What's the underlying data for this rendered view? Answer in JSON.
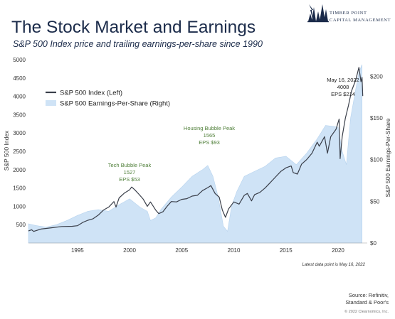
{
  "header": {
    "title": "The Stock Market and Earnings",
    "subtitle": "S&P 500 Index price and trailing earnings-per-share since 1990"
  },
  "logo": {
    "line1": "TIMBER POINT",
    "line2": "CAPITAL MANAGEMENT",
    "icon": "tree-icon",
    "color": "#1b2b4a"
  },
  "footer": {
    "note": "Latest data point is May 16, 2022",
    "source_line1": "Source: Refinitiv,",
    "source_line2": "Standard & Poor's",
    "copyright": "© 2022 Clearnomics, Inc."
  },
  "chart_data": {
    "type": "line",
    "xlim": [
      1990.3,
      2022.8
    ],
    "x_ticks": [
      1995,
      2000,
      2005,
      2010,
      2015,
      2020
    ],
    "ylim_left": [
      0,
      5000
    ],
    "left_ticks": [
      500,
      1000,
      1500,
      2000,
      2500,
      3000,
      3500,
      4000,
      4500,
      5000
    ],
    "ylabel_left": "S&P 500 Index",
    "ylim_right": [
      0,
      220
    ],
    "right_ticks": [
      0,
      50,
      100,
      150,
      200
    ],
    "right_tick_labels": [
      "$0",
      "$50",
      "$100",
      "$150",
      "$200"
    ],
    "ylabel_right": "S&P 500 Earnings-Per-Share",
    "grid": false,
    "legend_position": "top-left",
    "legend": [
      {
        "label": "S&P 500 Index (Left)",
        "color": "#3a3f4a",
        "kind": "line"
      },
      {
        "label": "S&P 500 Earnings-Per-Share (Right)",
        "color": "#cfe3f6",
        "kind": "area"
      }
    ],
    "series": [
      {
        "name": "S&P 500 Index (Left)",
        "axis": "left",
        "color": "#3a3f4a",
        "points": [
          [
            1990.3,
            330
          ],
          [
            1990.6,
            360
          ],
          [
            1990.8,
            315
          ],
          [
            1991.5,
            380
          ],
          [
            1992.5,
            415
          ],
          [
            1993.5,
            450
          ],
          [
            1994.5,
            455
          ],
          [
            1995.0,
            470
          ],
          [
            1995.5,
            560
          ],
          [
            1996.0,
            620
          ],
          [
            1996.5,
            660
          ],
          [
            1997.0,
            760
          ],
          [
            1997.5,
            900
          ],
          [
            1998.0,
            980
          ],
          [
            1998.5,
            1130
          ],
          [
            1998.7,
            980
          ],
          [
            1999.0,
            1230
          ],
          [
            1999.5,
            1360
          ],
          [
            2000.0,
            1450
          ],
          [
            2000.2,
            1527
          ],
          [
            2000.5,
            1450
          ],
          [
            2000.9,
            1330
          ],
          [
            2001.3,
            1200
          ],
          [
            2001.7,
            1000
          ],
          [
            2002.0,
            1120
          ],
          [
            2002.5,
            900
          ],
          [
            2002.8,
            800
          ],
          [
            2003.2,
            850
          ],
          [
            2003.6,
            1000
          ],
          [
            2004.0,
            1130
          ],
          [
            2004.5,
            1120
          ],
          [
            2005.0,
            1190
          ],
          [
            2005.5,
            1210
          ],
          [
            2006.0,
            1280
          ],
          [
            2006.5,
            1300
          ],
          [
            2007.0,
            1430
          ],
          [
            2007.5,
            1510
          ],
          [
            2007.8,
            1565
          ],
          [
            2008.2,
            1350
          ],
          [
            2008.6,
            1250
          ],
          [
            2008.9,
            900
          ],
          [
            2009.2,
            700
          ],
          [
            2009.5,
            930
          ],
          [
            2010.0,
            1120
          ],
          [
            2010.5,
            1060
          ],
          [
            2011.0,
            1300
          ],
          [
            2011.3,
            1350
          ],
          [
            2011.7,
            1150
          ],
          [
            2012.0,
            1320
          ],
          [
            2012.5,
            1380
          ],
          [
            2013.0,
            1500
          ],
          [
            2013.5,
            1650
          ],
          [
            2014.0,
            1800
          ],
          [
            2014.5,
            1950
          ],
          [
            2015.0,
            2050
          ],
          [
            2015.5,
            2100
          ],
          [
            2015.7,
            1920
          ],
          [
            2016.1,
            1880
          ],
          [
            2016.5,
            2150
          ],
          [
            2017.0,
            2280
          ],
          [
            2017.5,
            2450
          ],
          [
            2018.0,
            2750
          ],
          [
            2018.2,
            2640
          ],
          [
            2018.7,
            2900
          ],
          [
            2018.98,
            2450
          ],
          [
            2019.3,
            2900
          ],
          [
            2019.8,
            3100
          ],
          [
            2020.1,
            3380
          ],
          [
            2020.2,
            2300
          ],
          [
            2020.4,
            2900
          ],
          [
            2020.7,
            3400
          ],
          [
            2021.0,
            3750
          ],
          [
            2021.3,
            4150
          ],
          [
            2021.7,
            4450
          ],
          [
            2022.0,
            4790
          ],
          [
            2022.2,
            4400
          ],
          [
            2022.3,
            4520
          ],
          [
            2022.37,
            4008
          ]
        ]
      },
      {
        "name": "S&P 500 Earnings-Per-Share (Right)",
        "axis": "right",
        "color": "#cfe3f6",
        "points": [
          [
            1990.3,
            23
          ],
          [
            1991.0,
            21
          ],
          [
            1992.0,
            19
          ],
          [
            1993.0,
            22
          ],
          [
            1994.0,
            27
          ],
          [
            1995.0,
            33
          ],
          [
            1996.0,
            38
          ],
          [
            1997.0,
            40
          ],
          [
            1998.0,
            38
          ],
          [
            1999.0,
            46
          ],
          [
            2000.0,
            53
          ],
          [
            2001.0,
            43
          ],
          [
            2001.7,
            38
          ],
          [
            2002.0,
            27
          ],
          [
            2002.5,
            30
          ],
          [
            2003.0,
            40
          ],
          [
            2004.0,
            55
          ],
          [
            2005.0,
            67
          ],
          [
            2006.0,
            80
          ],
          [
            2007.0,
            88
          ],
          [
            2007.5,
            93
          ],
          [
            2008.0,
            80
          ],
          [
            2008.5,
            55
          ],
          [
            2009.0,
            20
          ],
          [
            2009.4,
            14
          ],
          [
            2009.8,
            45
          ],
          [
            2010.3,
            62
          ],
          [
            2011.0,
            80
          ],
          [
            2012.0,
            86
          ],
          [
            2013.0,
            92
          ],
          [
            2014.0,
            102
          ],
          [
            2015.0,
            104
          ],
          [
            2016.0,
            94
          ],
          [
            2017.0,
            108
          ],
          [
            2018.0,
            125
          ],
          [
            2018.8,
            141
          ],
          [
            2019.5,
            140
          ],
          [
            2020.0,
            139
          ],
          [
            2020.4,
            110
          ],
          [
            2020.8,
            94
          ],
          [
            2021.2,
            150
          ],
          [
            2021.7,
            185
          ],
          [
            2022.0,
            205
          ],
          [
            2022.3,
            214
          ]
        ]
      }
    ],
    "annotations": [
      {
        "lines": [
          "Tech Bubble Peak",
          "1527",
          "EPS $53"
        ],
        "at": [
          2000.2,
          1527
        ],
        "color": "#4f7f39"
      },
      {
        "lines": [
          "Housing Bubble Peak",
          "1565",
          "EPS $93"
        ],
        "at": [
          2007.8,
          1565
        ],
        "color": "#4f7f39"
      },
      {
        "lines": [
          "May 16, 2022",
          "4008",
          "EPS $214"
        ],
        "at": [
          2022.37,
          4008
        ],
        "color": "#222222"
      }
    ]
  }
}
